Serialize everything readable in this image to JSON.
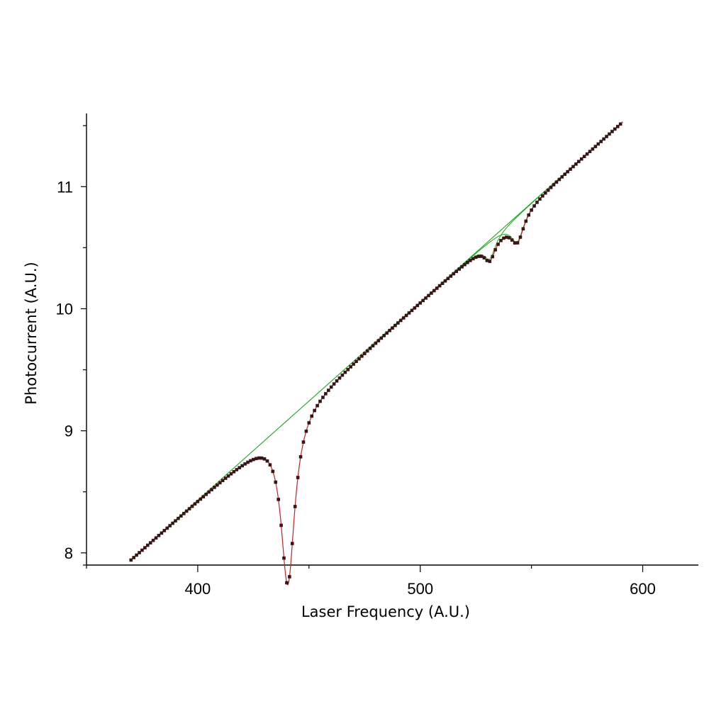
{
  "chart_data": {
    "type": "scatter",
    "xlabel": "Laser Frequency (A.U.)",
    "ylabel": "Photocurrent (A.U.)",
    "xlim": [
      350,
      625
    ],
    "ylim": [
      7.9,
      11.6
    ],
    "x_ticks": [
      400,
      500,
      600
    ],
    "y_ticks": [
      8,
      9,
      10,
      11
    ],
    "grid": false,
    "legend": "none",
    "baseline": {
      "slope": 0.01623,
      "intercept": 1.94
    },
    "dips": [
      {
        "center": 440.5,
        "depth": 1.35,
        "width": 3.7
      },
      {
        "center": 531.3,
        "depth": 0.155,
        "width": 3.0
      },
      {
        "center": 543.7,
        "depth": 0.215,
        "width": 3.6
      }
    ],
    "series": [
      {
        "style": "markers",
        "color": "#3a1414",
        "x_range": [
          370,
          591
        ],
        "step": 1.25,
        "note_values": "computed from baseline and dips"
      },
      {
        "style": "line",
        "color": "#cc1f1f",
        "x_range": [
          370,
          591
        ]
      },
      {
        "style": "line",
        "color": "#1aa81a",
        "x_range": [
          370,
          591
        ]
      }
    ]
  }
}
